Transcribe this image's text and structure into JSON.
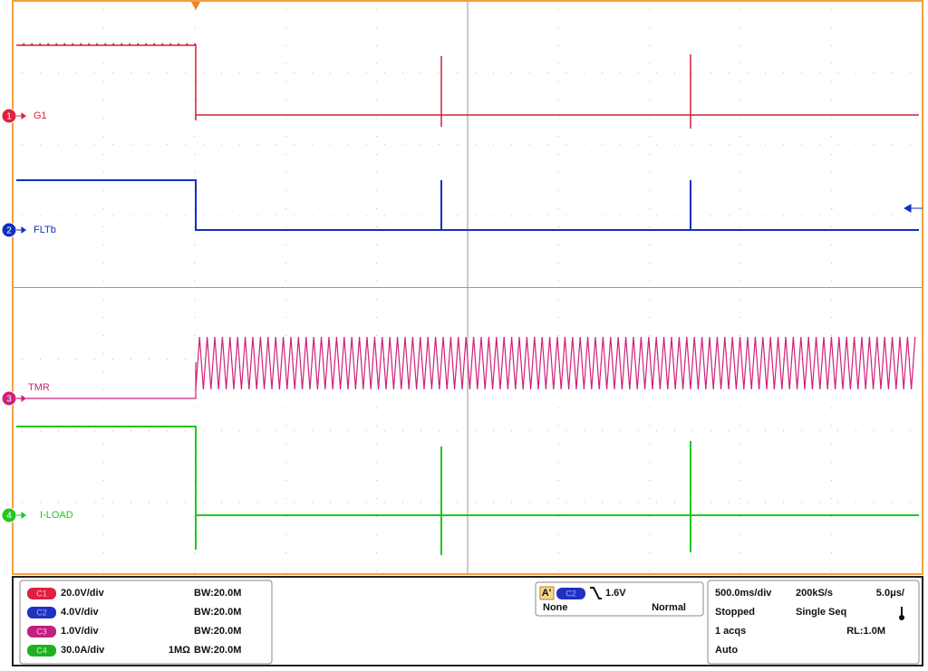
{
  "channels": [
    {
      "number": "1",
      "label": "G1"
    },
    {
      "number": "2",
      "label": "FLTb"
    },
    {
      "number": "3",
      "label": "TMR"
    },
    {
      "number": "4",
      "label": "I-LOAD"
    }
  ],
  "vertical": [
    {
      "badge": "C1",
      "scale": "20.0V/div",
      "bandwidth": "BW:20.0M"
    },
    {
      "badge": "C2",
      "scale": "4.0V/div",
      "bandwidth": "BW:20.0M"
    },
    {
      "badge": "C3",
      "scale": "1.0V/div",
      "bandwidth": "BW:20.0M"
    },
    {
      "badge": "C4",
      "scale": "30.0A/div",
      "impedance": "1MΩ",
      "bandwidth": "BW:20.0M"
    }
  ],
  "trigger": {
    "mode_badge": "A'",
    "source": "C2",
    "level": "1.6V",
    "coupling": "None",
    "type": "Normal"
  },
  "timebase": {
    "scale": "500.0ms/div",
    "rate": "200kS/s",
    "resolution": "5.0μs/",
    "state": "Stopped",
    "acq_mode": "Single Seq",
    "acqs": "1 acqs",
    "record": "RL:1.0M",
    "trigger_mode": "Auto"
  }
}
